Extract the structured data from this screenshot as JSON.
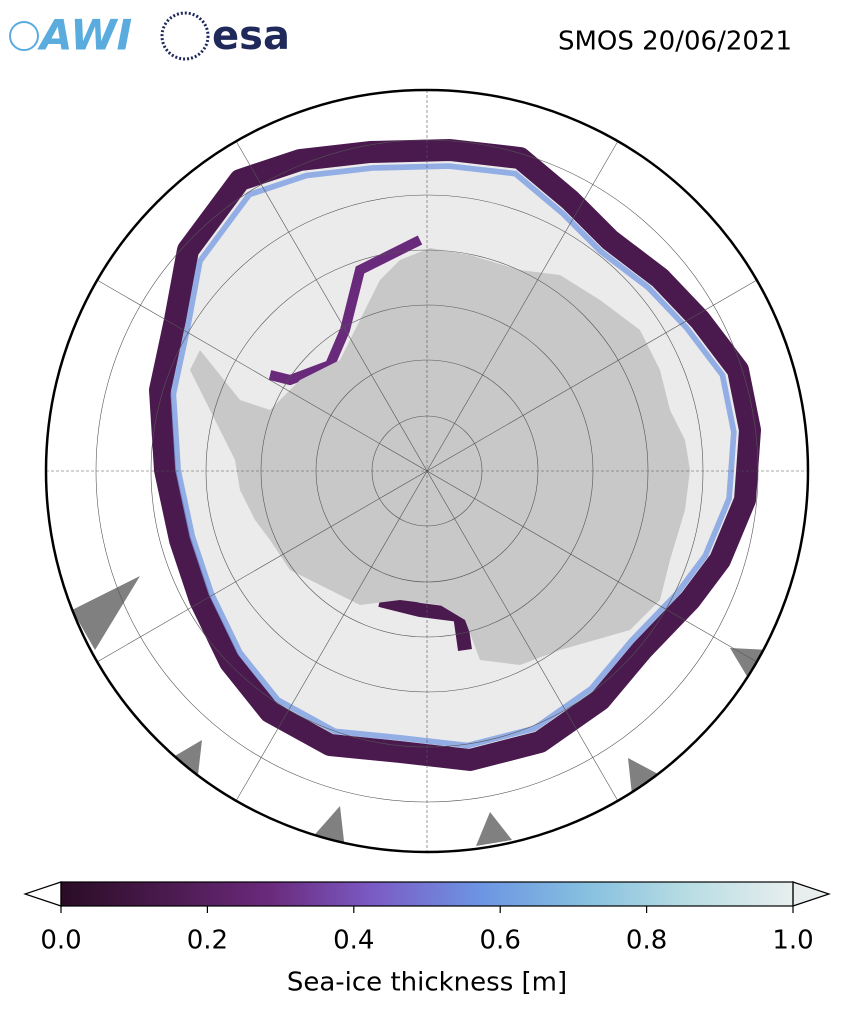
{
  "logos": {
    "awi": "AWI",
    "esa": "esa"
  },
  "title": "SMOS 20/06/2021",
  "colorbar": {
    "label": "Sea-ice thickness [m]",
    "lim": [
      0,
      1
    ],
    "ticks": [
      {
        "value": 0,
        "label": "0.0"
      },
      0.2,
      0.4,
      0.6,
      0.8,
      {
        "value": 1,
        "label": "1.0"
      }
    ],
    "colors": [
      "#2a0c25",
      "#4a1a4e",
      "#6a2a7c",
      "#7b5cc6",
      "#6c94e2",
      "#85bfe0",
      "#b8dde3",
      "#e8eeee"
    ],
    "extend": "both"
  }
}
